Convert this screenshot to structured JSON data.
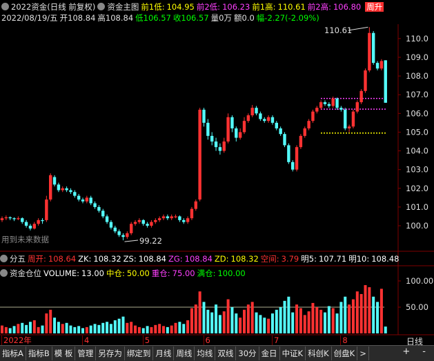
{
  "header": {
    "title": "2022资金(日线 前复权)",
    "indicator": "资金主图",
    "date": "2022/08/19/五",
    "open": "开108.84",
    "high": "高108.84",
    "low": "低106.57",
    "close": "收106.57",
    "volume": "量0万",
    "amount": "额0.0",
    "change": "幅-2.27(-2.09%)",
    "badge": "周升"
  },
  "chart_data": {
    "type": "candlestick",
    "open": [
      100.3,
      100.4,
      100.45,
      100.4,
      100.35,
      100.4,
      100.2,
      100.0,
      99.85,
      100.1,
      100.3,
      100.3,
      101.4,
      102.6,
      102.2,
      101.9,
      102.0,
      101.9,
      101.8,
      101.6,
      101.4,
      101.3,
      101.5,
      101.2,
      101.0,
      100.8,
      100.5,
      100.2,
      99.9,
      99.7,
      99.5,
      99.4,
      99.6,
      100.1,
      100.2,
      100.3,
      100.1,
      100.0,
      100.2,
      100.3,
      100.4,
      100.5,
      100.4,
      100.45,
      100.5,
      100.3,
      100.2,
      100.4,
      100.9,
      101.4,
      106.2,
      105.5,
      104.8,
      104.5,
      104.2,
      104.0,
      104.5,
      105.8,
      105.2,
      104.7,
      105.0,
      105.6,
      105.9,
      106.3,
      106.0,
      105.7,
      105.6,
      105.8,
      105.5,
      105.2,
      104.9,
      104.3,
      103.4,
      103.0,
      104.2,
      104.8,
      105.2,
      105.6,
      106.1,
      106.3,
      106.6,
      106.5,
      106.4,
      106.8,
      106.3,
      106.2,
      105.2,
      105.3,
      106.1,
      106.6,
      107.2,
      108.3,
      110.3,
      108.7,
      108.4,
      108.84
    ],
    "high": [
      100.5,
      100.55,
      100.5,
      100.45,
      100.5,
      100.45,
      100.3,
      100.1,
      100.2,
      100.4,
      100.4,
      101.6,
      102.8,
      102.7,
      102.3,
      102.1,
      102.1,
      102.0,
      101.9,
      101.7,
      101.5,
      101.6,
      101.6,
      101.3,
      101.1,
      100.9,
      100.6,
      100.3,
      100.0,
      99.8,
      99.6,
      99.7,
      100.2,
      100.3,
      100.4,
      100.35,
      100.2,
      100.3,
      100.4,
      100.5,
      100.6,
      100.6,
      100.6,
      100.6,
      100.55,
      100.4,
      100.5,
      101.0,
      101.4,
      106.3,
      106.3,
      105.7,
      105.0,
      104.7,
      104.4,
      104.7,
      106.0,
      105.9,
      105.3,
      105.2,
      105.8,
      106.0,
      106.45,
      106.4,
      106.1,
      105.8,
      105.9,
      105.9,
      105.6,
      105.3,
      105.0,
      104.4,
      103.5,
      104.3,
      104.9,
      105.3,
      105.7,
      106.2,
      106.4,
      106.7,
      106.7,
      106.6,
      106.9,
      106.85,
      106.4,
      106.3,
      105.4,
      106.2,
      106.7,
      107.3,
      108.4,
      110.61,
      110.4,
      108.8,
      108.9,
      108.84
    ],
    "low": [
      100.2,
      100.3,
      100.3,
      100.25,
      100.3,
      100.1,
      99.9,
      99.75,
      99.8,
      100.0,
      100.1,
      100.2,
      101.3,
      102.1,
      101.8,
      101.8,
      101.8,
      101.7,
      101.5,
      101.3,
      101.2,
      101.2,
      101.1,
      100.9,
      100.7,
      100.4,
      100.1,
      99.8,
      99.6,
      99.4,
      99.22,
      99.3,
      99.5,
      100.0,
      100.1,
      100.0,
      99.9,
      99.9,
      100.1,
      100.2,
      100.3,
      100.3,
      100.3,
      100.4,
      100.2,
      100.1,
      100.1,
      100.3,
      100.8,
      101.3,
      105.3,
      104.6,
      104.3,
      104.0,
      103.8,
      103.9,
      104.4,
      105.0,
      104.5,
      104.6,
      104.9,
      105.5,
      105.8,
      105.9,
      105.6,
      105.5,
      105.5,
      105.4,
      105.1,
      104.8,
      104.2,
      103.3,
      102.9,
      102.9,
      104.1,
      104.7,
      105.1,
      105.5,
      106.0,
      106.2,
      106.4,
      106.3,
      106.3,
      106.2,
      106.1,
      105.1,
      105.0,
      105.2,
      106.0,
      106.5,
      107.1,
      108.2,
      108.6,
      108.3,
      108.3,
      106.57
    ],
    "close": [
      100.4,
      100.45,
      100.4,
      100.35,
      100.4,
      100.2,
      100.0,
      99.85,
      100.1,
      100.3,
      100.25,
      101.4,
      102.7,
      102.2,
      101.9,
      102.0,
      101.9,
      101.8,
      101.6,
      101.4,
      101.3,
      101.5,
      101.2,
      101.0,
      100.8,
      100.5,
      100.2,
      99.9,
      99.7,
      99.5,
      99.4,
      99.6,
      100.1,
      100.2,
      100.3,
      100.1,
      100.0,
      100.2,
      100.3,
      100.4,
      100.5,
      100.4,
      100.5,
      100.5,
      100.3,
      100.2,
      100.4,
      100.9,
      101.3,
      106.2,
      105.5,
      104.8,
      104.5,
      104.2,
      104.0,
      104.5,
      105.8,
      105.2,
      104.7,
      105.0,
      105.6,
      105.9,
      106.3,
      106.0,
      105.7,
      105.6,
      105.8,
      105.5,
      105.2,
      104.9,
      104.3,
      103.4,
      103.0,
      104.2,
      104.8,
      105.2,
      105.6,
      106.1,
      106.3,
      106.6,
      106.5,
      106.4,
      106.8,
      106.3,
      106.2,
      105.2,
      105.3,
      106.1,
      106.6,
      107.2,
      108.3,
      110.3,
      108.7,
      108.4,
      108.8,
      106.57
    ],
    "volume": [
      15,
      12,
      10,
      14,
      18,
      20,
      16,
      22,
      25,
      12,
      15,
      38,
      45,
      30,
      22,
      18,
      20,
      15,
      12,
      14,
      10,
      12,
      15,
      18,
      16,
      20,
      22,
      18,
      25,
      28,
      32,
      20,
      22,
      15,
      12,
      10,
      14,
      12,
      16,
      18,
      14,
      12,
      15,
      20,
      22,
      18,
      25,
      48,
      55,
      80,
      60,
      45,
      40,
      55,
      35,
      42,
      65,
      50,
      38,
      30,
      45,
      55,
      60,
      40,
      35,
      30,
      28,
      38,
      45,
      50,
      62,
      70,
      40,
      55,
      48,
      35,
      42,
      58,
      50,
      45,
      40,
      52,
      48,
      38,
      60,
      70,
      55,
      65,
      80,
      75,
      92,
      88,
      70,
      60,
      85,
      13
    ],
    "up_color": "#ff3232",
    "down_color": "#54fcfc",
    "ylim": [
      98.71,
      110.77
    ],
    "yticks": [
      {
        "value": 100,
        "label": "100.0"
      },
      {
        "value": 101,
        "label": "101.0"
      },
      {
        "value": 102,
        "label": "102.0"
      },
      {
        "value": 103,
        "label": "103.0"
      },
      {
        "value": 104,
        "label": "104.0"
      },
      {
        "value": 105,
        "label": "105.0"
      },
      {
        "value": 106,
        "label": "106.0"
      },
      {
        "value": 107,
        "label": "107.0"
      },
      {
        "value": 108,
        "label": "108.0"
      },
      {
        "value": 109,
        "label": "109.0"
      },
      {
        "value": 110,
        "label": "110.0"
      }
    ],
    "volume_ylim": [
      0,
      109.2
    ],
    "volume_yticks": [
      {
        "value": 50,
        "label": "50.00"
      },
      {
        "value": 100,
        "label": "100.00"
      }
    ],
    "xticks": [
      {
        "value": 0,
        "label": "2022年"
      },
      {
        "value": 20,
        "label": "4"
      },
      {
        "value": 35,
        "label": "5"
      },
      {
        "value": 50,
        "label": "6"
      },
      {
        "value": 67,
        "label": "7"
      },
      {
        "value": 84,
        "label": "8"
      }
    ],
    "levels": [
      {
        "name": "前1低:",
        "value": 104.95,
        "color": "#ffff00",
        "line": true
      },
      {
        "name": "前2低:",
        "value": 106.23,
        "color": "#ff40ff",
        "line": true
      },
      {
        "name": "前1高:",
        "value": 110.61,
        "color": "#ffff00",
        "line": false
      },
      {
        "name": "前2高:",
        "value": 106.8,
        "value_label": "106.80",
        "color": "#ff40ff",
        "line": true
      }
    ]
  },
  "indicator_bar": {
    "name": "分五",
    "items": [
      {
        "label": "周开:",
        "value": "108.64",
        "color": "#ff3232"
      },
      {
        "label": "ZK:",
        "value": "108.32",
        "color": "#ffffff"
      },
      {
        "label": "ZS:",
        "value": "108.84",
        "color": "#ffffff"
      },
      {
        "label": "ZG:",
        "value": "108.84",
        "color": "#ff40ff"
      },
      {
        "label": "ZD:",
        "value": "108.32",
        "color": "#ffff00"
      },
      {
        "label": "空间:",
        "value": "3.79",
        "color": "#ff3232"
      },
      {
        "label": "明5:",
        "value": "107.71",
        "color": "#ffffff"
      },
      {
        "label": "明10:",
        "value": "108.48",
        "color": "#ffffff"
      }
    ]
  },
  "volume_bar": {
    "name": "资金仓位",
    "items": [
      {
        "label": "VOLUME:",
        "value": "13.00",
        "color": "#ffffff"
      },
      {
        "label": "中仓:",
        "value": "50.00",
        "color": "#ffff00"
      },
      {
        "label": "重仓:",
        "value": "75.00",
        "color": "#ff40ff"
      },
      {
        "label": "满仓:",
        "value": "100.00",
        "color": "#00ff00"
      }
    ]
  },
  "note": "用到未来数据",
  "period": "日线",
  "tabs": [
    "指标A",
    "指标B",
    "模 板",
    "管理",
    "另存为",
    "绑定到",
    "月线",
    "周线",
    "均线",
    "双线",
    "30分",
    "金日",
    "中证K",
    "科创K",
    "创盘K",
    ">"
  ],
  "zoom": [
    "+",
    "-"
  ]
}
